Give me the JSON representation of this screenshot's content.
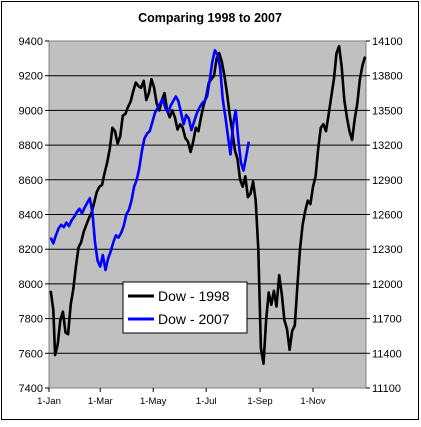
{
  "chart_data": {
    "type": "line",
    "title": "Comparing 1998 to 2007",
    "background": "#c0c0c0",
    "grid": true,
    "legend_placement": "center-left",
    "x_axis": {
      "ticks": [
        "1-Jan",
        "1-Mar",
        "1-May",
        "1-Jul",
        "1-Sep",
        "1-Nov"
      ],
      "tick_days": [
        0,
        59,
        120,
        181,
        243,
        304
      ],
      "range_days": [
        0,
        365
      ]
    },
    "y_axis_left": {
      "ticks": [
        "7400",
        "7600",
        "7800",
        "8000",
        "8200",
        "8400",
        "8600",
        "8800",
        "9000",
        "9200",
        "9400"
      ],
      "ylim": [
        7400,
        9400
      ]
    },
    "y_axis_right": {
      "ticks": [
        "11100",
        "11400",
        "11700",
        "12000",
        "12300",
        "12600",
        "12900",
        "13200",
        "13500",
        "13800",
        "14100"
      ],
      "ylim": [
        11100,
        14100
      ]
    },
    "series": [
      {
        "name": "Dow - 1998",
        "color": "#000000",
        "axis": "left",
        "points": [
          [
            2,
            7960
          ],
          [
            5,
            7850
          ],
          [
            7,
            7590
          ],
          [
            10,
            7650
          ],
          [
            13,
            7790
          ],
          [
            16,
            7840
          ],
          [
            19,
            7720
          ],
          [
            22,
            7710
          ],
          [
            25,
            7880
          ],
          [
            28,
            7970
          ],
          [
            31,
            8100
          ],
          [
            34,
            8210
          ],
          [
            37,
            8240
          ],
          [
            40,
            8300
          ],
          [
            43,
            8340
          ],
          [
            46,
            8380
          ],
          [
            49,
            8410
          ],
          [
            52,
            8470
          ],
          [
            55,
            8530
          ],
          [
            58,
            8560
          ],
          [
            61,
            8570
          ],
          [
            64,
            8640
          ],
          [
            67,
            8700
          ],
          [
            70,
            8780
          ],
          [
            73,
            8900
          ],
          [
            76,
            8880
          ],
          [
            79,
            8810
          ],
          [
            82,
            8850
          ],
          [
            85,
            8970
          ],
          [
            88,
            8980
          ],
          [
            91,
            9020
          ],
          [
            94,
            9050
          ],
          [
            97,
            9110
          ],
          [
            100,
            9160
          ],
          [
            103,
            9140
          ],
          [
            106,
            9130
          ],
          [
            109,
            9170
          ],
          [
            112,
            9060
          ],
          [
            115,
            9100
          ],
          [
            118,
            9180
          ],
          [
            121,
            9130
          ],
          [
            124,
            9040
          ],
          [
            127,
            9000
          ],
          [
            130,
            9060
          ],
          [
            133,
            9100
          ],
          [
            136,
            9000
          ],
          [
            139,
            8960
          ],
          [
            142,
            9000
          ],
          [
            145,
            8960
          ],
          [
            148,
            8890
          ],
          [
            151,
            8920
          ],
          [
            154,
            8900
          ],
          [
            157,
            8840
          ],
          [
            160,
            8820
          ],
          [
            163,
            8760
          ],
          [
            166,
            8820
          ],
          [
            169,
            8900
          ],
          [
            172,
            8880
          ],
          [
            175,
            8960
          ],
          [
            178,
            9030
          ],
          [
            181,
            9080
          ],
          [
            184,
            9160
          ],
          [
            187,
            9180
          ],
          [
            190,
            9200
          ],
          [
            193,
            9300
          ],
          [
            196,
            9330
          ],
          [
            199,
            9280
          ],
          [
            202,
            9200
          ],
          [
            205,
            9100
          ],
          [
            208,
            8980
          ],
          [
            211,
            8880
          ],
          [
            214,
            8770
          ],
          [
            217,
            8720
          ],
          [
            220,
            8600
          ],
          [
            223,
            8560
          ],
          [
            226,
            8620
          ],
          [
            229,
            8500
          ],
          [
            232,
            8520
          ],
          [
            235,
            8590
          ],
          [
            238,
            8480
          ],
          [
            241,
            8200
          ],
          [
            244,
            7630
          ],
          [
            247,
            7540
          ],
          [
            250,
            7790
          ],
          [
            253,
            7950
          ],
          [
            256,
            7880
          ],
          [
            259,
            7960
          ],
          [
            262,
            7870
          ],
          [
            265,
            8050
          ],
          [
            268,
            7940
          ],
          [
            271,
            7790
          ],
          [
            274,
            7740
          ],
          [
            277,
            7620
          ],
          [
            280,
            7730
          ],
          [
            283,
            7760
          ],
          [
            286,
            7990
          ],
          [
            289,
            8200
          ],
          [
            292,
            8340
          ],
          [
            295,
            8420
          ],
          [
            298,
            8480
          ],
          [
            301,
            8460
          ],
          [
            304,
            8560
          ],
          [
            307,
            8620
          ],
          [
            310,
            8780
          ],
          [
            313,
            8900
          ],
          [
            316,
            8920
          ],
          [
            319,
            8880
          ],
          [
            322,
            8980
          ],
          [
            325,
            9080
          ],
          [
            328,
            9180
          ],
          [
            331,
            9330
          ],
          [
            334,
            9370
          ],
          [
            337,
            9250
          ],
          [
            340,
            9060
          ],
          [
            343,
            8960
          ],
          [
            346,
            8880
          ],
          [
            349,
            8830
          ],
          [
            352,
            8950
          ],
          [
            355,
            9040
          ],
          [
            358,
            9180
          ],
          [
            361,
            9260
          ],
          [
            364,
            9310
          ]
        ]
      },
      {
        "name": "Dow - 2007",
        "color": "#0000ff",
        "axis": "right",
        "points": [
          [
            2,
            12400
          ],
          [
            5,
            12350
          ],
          [
            8,
            12420
          ],
          [
            11,
            12480
          ],
          [
            14,
            12510
          ],
          [
            17,
            12490
          ],
          [
            20,
            12530
          ],
          [
            23,
            12500
          ],
          [
            26,
            12550
          ],
          [
            29,
            12580
          ],
          [
            32,
            12620
          ],
          [
            35,
            12650
          ],
          [
            38,
            12610
          ],
          [
            41,
            12660
          ],
          [
            44,
            12700
          ],
          [
            47,
            12740
          ],
          [
            50,
            12620
          ],
          [
            53,
            12360
          ],
          [
            56,
            12200
          ],
          [
            59,
            12150
          ],
          [
            62,
            12250
          ],
          [
            65,
            12120
          ],
          [
            68,
            12220
          ],
          [
            71,
            12280
          ],
          [
            74,
            12360
          ],
          [
            77,
            12420
          ],
          [
            80,
            12400
          ],
          [
            83,
            12440
          ],
          [
            86,
            12500
          ],
          [
            89,
            12600
          ],
          [
            92,
            12640
          ],
          [
            95,
            12720
          ],
          [
            98,
            12840
          ],
          [
            101,
            12900
          ],
          [
            104,
            13000
          ],
          [
            107,
            13150
          ],
          [
            110,
            13260
          ],
          [
            113,
            13300
          ],
          [
            116,
            13320
          ],
          [
            119,
            13400
          ],
          [
            122,
            13480
          ],
          [
            125,
            13520
          ],
          [
            128,
            13560
          ],
          [
            131,
            13600
          ],
          [
            134,
            13520
          ],
          [
            137,
            13480
          ],
          [
            140,
            13540
          ],
          [
            143,
            13580
          ],
          [
            146,
            13620
          ],
          [
            149,
            13580
          ],
          [
            152,
            13480
          ],
          [
            155,
            13380
          ],
          [
            158,
            13460
          ],
          [
            161,
            13430
          ],
          [
            164,
            13330
          ],
          [
            167,
            13400
          ],
          [
            170,
            13470
          ],
          [
            173,
            13520
          ],
          [
            176,
            13560
          ],
          [
            179,
            13580
          ],
          [
            182,
            13620
          ],
          [
            185,
            13760
          ],
          [
            188,
            13920
          ],
          [
            191,
            14020
          ],
          [
            194,
            13980
          ],
          [
            197,
            13870
          ],
          [
            200,
            13600
          ],
          [
            203,
            13450
          ],
          [
            206,
            13280
          ],
          [
            209,
            13120
          ],
          [
            212,
            13380
          ],
          [
            215,
            13500
          ],
          [
            218,
            13250
          ],
          [
            221,
            13050
          ],
          [
            224,
            12980
          ],
          [
            227,
            13100
          ],
          [
            230,
            13230
          ]
        ]
      }
    ]
  }
}
